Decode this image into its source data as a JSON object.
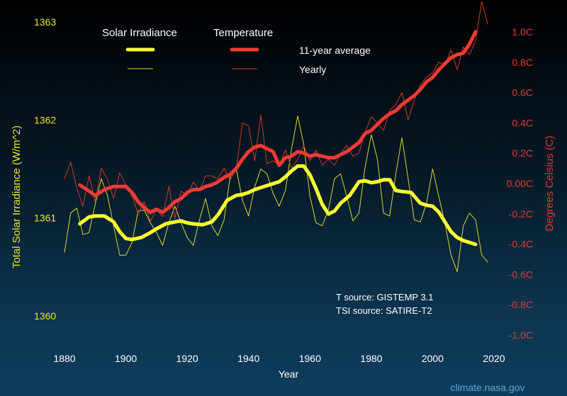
{
  "chart_data": {
    "type": "line",
    "xlabel": "Year",
    "x_ticks": [
      1880,
      1900,
      1920,
      1940,
      1960,
      1980,
      2000,
      2020
    ],
    "xlim": [
      1880,
      2020
    ],
    "left_axis": {
      "label": "Total Solar Irradiance (W/m^2)",
      "ticks": [
        1360,
        1361,
        1362,
        1363
      ],
      "tick_labels": [
        "1360",
        "1361",
        "1362",
        "1363"
      ],
      "ylim": [
        1360,
        1363
      ],
      "color": "#e8e62a"
    },
    "right_axis": {
      "label": "Degrees Celsius (C)",
      "ticks": [
        -1.0,
        -0.8,
        -0.6,
        -0.4,
        -0.2,
        0.0,
        0.2,
        0.4,
        0.6,
        0.8,
        1.0
      ],
      "tick_labels": [
        "-1.0C",
        "-0.8C",
        "-0.6C",
        "-0.4C",
        "-0.2C",
        "0.00C",
        "0.2C",
        "0.4C",
        "0.6C",
        "0.8C",
        "1.0C"
      ],
      "ylim": [
        -1.0,
        1.0
      ],
      "color": "#e23a33"
    },
    "legend": {
      "placement": "top-left",
      "headers": [
        "Solar Irradiance",
        "Temperature"
      ],
      "rows": [
        "11-year average",
        "Yearly"
      ]
    },
    "annotations": [
      "T source: GISTEMP 3.1",
      "TSI source: SATIRE-T2"
    ],
    "credit": "climate.nasa.gov",
    "series": [
      {
        "name": "Solar Irradiance 11-year average",
        "axis": "left",
        "color": "#ffff33",
        "width": 5,
        "x": [
          1885,
          1888,
          1890,
          1893,
          1896,
          1898,
          1900,
          1902,
          1905,
          1908,
          1910,
          1913,
          1916,
          1918,
          1920,
          1922,
          1925,
          1928,
          1930,
          1933,
          1936,
          1938,
          1940,
          1942,
          1945,
          1948,
          1950,
          1952,
          1954,
          1956,
          1958,
          1960,
          1962,
          1964,
          1966,
          1968,
          1970,
          1973,
          1976,
          1978,
          1980,
          1982,
          1984,
          1986,
          1988,
          1990,
          1993,
          1996,
          1998,
          2000,
          2002,
          2004,
          2006,
          2008,
          2010,
          2012,
          2014
        ],
        "y": [
          1360.94,
          1361.01,
          1361.02,
          1361.02,
          1360.96,
          1360.86,
          1360.79,
          1360.78,
          1360.8,
          1360.85,
          1360.89,
          1360.94,
          1360.96,
          1360.97,
          1360.95,
          1360.94,
          1360.93,
          1360.96,
          1361.03,
          1361.18,
          1361.23,
          1361.24,
          1361.26,
          1361.29,
          1361.32,
          1361.35,
          1361.37,
          1361.42,
          1361.48,
          1361.53,
          1361.53,
          1361.44,
          1361.3,
          1361.14,
          1361.04,
          1361.07,
          1361.15,
          1361.23,
          1361.37,
          1361.38,
          1361.36,
          1361.37,
          1361.39,
          1361.39,
          1361.28,
          1361.27,
          1361.26,
          1361.15,
          1361.13,
          1361.12,
          1361.06,
          1360.96,
          1360.86,
          1360.8,
          1360.77,
          1360.75,
          1360.73
        ]
      },
      {
        "name": "Solar Irradiance Yearly",
        "axis": "left",
        "color": "#d8d633",
        "width": 1,
        "x": [
          1880,
          1882,
          1884,
          1886,
          1888,
          1890,
          1892,
          1894,
          1896,
          1898,
          1900,
          1902,
          1904,
          1906,
          1908,
          1910,
          1912,
          1914,
          1916,
          1918,
          1920,
          1922,
          1924,
          1926,
          1928,
          1930,
          1932,
          1934,
          1936,
          1938,
          1940,
          1942,
          1944,
          1946,
          1948,
          1950,
          1952,
          1954,
          1956,
          1958,
          1960,
          1962,
          1964,
          1966,
          1968,
          1970,
          1972,
          1974,
          1976,
          1978,
          1980,
          1982,
          1984,
          1986,
          1988,
          1990,
          1992,
          1994,
          1996,
          1998,
          2000,
          2002,
          2004,
          2006,
          2008,
          2010,
          2012,
          2014,
          2016,
          2018
        ],
        "y": [
          1360.65,
          1361.05,
          1361.1,
          1360.83,
          1360.85,
          1361.14,
          1361.4,
          1361.23,
          1360.92,
          1360.62,
          1360.62,
          1360.75,
          1361.07,
          1361.08,
          1360.95,
          1360.85,
          1360.72,
          1360.95,
          1361.12,
          1360.95,
          1360.8,
          1360.72,
          1360.98,
          1361.2,
          1360.92,
          1360.82,
          1360.98,
          1361.42,
          1361.5,
          1361.18,
          1361.02,
          1361.32,
          1361.5,
          1361.45,
          1361.25,
          1361.12,
          1361.28,
          1361.7,
          1362.04,
          1361.75,
          1361.22,
          1360.95,
          1360.92,
          1361.08,
          1361.4,
          1361.45,
          1361.22,
          1360.97,
          1361.05,
          1361.52,
          1361.85,
          1361.6,
          1361.05,
          1361.02,
          1361.45,
          1361.82,
          1361.4,
          1360.98,
          1360.96,
          1361.15,
          1361.5,
          1361.22,
          1360.95,
          1360.62,
          1360.45,
          1360.92,
          1361.05,
          1360.98,
          1360.62,
          1360.55
        ]
      },
      {
        "name": "Temperature 11-year average",
        "axis": "right",
        "color": "#ee3b33",
        "width": 5,
        "x": [
          1885,
          1888,
          1890,
          1893,
          1896,
          1898,
          1900,
          1902,
          1904,
          1906,
          1908,
          1910,
          1912,
          1914,
          1916,
          1918,
          1920,
          1922,
          1924,
          1926,
          1928,
          1930,
          1932,
          1934,
          1936,
          1938,
          1940,
          1942,
          1944,
          1946,
          1948,
          1950,
          1952,
          1954,
          1956,
          1958,
          1960,
          1962,
          1964,
          1966,
          1968,
          1970,
          1972,
          1974,
          1976,
          1978,
          1980,
          1982,
          1984,
          1986,
          1988,
          1990,
          1992,
          1994,
          1996,
          1998,
          2000,
          2002,
          2004,
          2006,
          2008,
          2010,
          2012,
          2014
        ],
        "y": [
          -0.01,
          -0.05,
          -0.08,
          -0.04,
          -0.02,
          -0.02,
          -0.02,
          -0.06,
          -0.12,
          -0.16,
          -0.19,
          -0.17,
          -0.19,
          -0.16,
          -0.12,
          -0.1,
          -0.06,
          -0.04,
          -0.04,
          -0.02,
          -0.01,
          0.01,
          0.04,
          0.06,
          0.1,
          0.16,
          0.21,
          0.24,
          0.25,
          0.23,
          0.21,
          0.12,
          0.17,
          0.18,
          0.21,
          0.2,
          0.18,
          0.19,
          0.18,
          0.17,
          0.17,
          0.19,
          0.21,
          0.24,
          0.27,
          0.33,
          0.35,
          0.39,
          0.43,
          0.46,
          0.48,
          0.52,
          0.55,
          0.58,
          0.62,
          0.67,
          0.7,
          0.75,
          0.79,
          0.83,
          0.85,
          0.86,
          0.92,
          1.0
        ]
      },
      {
        "name": "Temperature Yearly",
        "axis": "right",
        "color": "#cc3a30",
        "width": 1,
        "x": [
          1880,
          1882,
          1884,
          1886,
          1888,
          1890,
          1892,
          1894,
          1896,
          1898,
          1900,
          1902,
          1904,
          1906,
          1908,
          1910,
          1912,
          1914,
          1916,
          1918,
          1920,
          1922,
          1924,
          1926,
          1928,
          1930,
          1932,
          1934,
          1936,
          1938,
          1940,
          1942,
          1944,
          1946,
          1948,
          1950,
          1952,
          1954,
          1956,
          1958,
          1960,
          1962,
          1964,
          1966,
          1968,
          1970,
          1972,
          1974,
          1976,
          1978,
          1980,
          1982,
          1984,
          1986,
          1988,
          1990,
          1992,
          1994,
          1996,
          1998,
          2000,
          2002,
          2004,
          2006,
          2008,
          2010,
          2012,
          2014,
          2016,
          2018
        ],
        "y": [
          0.03,
          0.14,
          -0.03,
          -0.15,
          0.05,
          -0.12,
          0.1,
          0.03,
          -0.1,
          0.07,
          -0.01,
          -0.08,
          -0.2,
          -0.12,
          -0.25,
          -0.17,
          -0.22,
          -0.02,
          -0.23,
          -0.05,
          -0.08,
          0.01,
          -0.05,
          0.05,
          0.05,
          0.03,
          0.1,
          0.02,
          0.1,
          0.4,
          0.38,
          0.15,
          0.45,
          0.13,
          0.15,
          0.12,
          0.22,
          0.1,
          0.16,
          0.25,
          0.15,
          0.22,
          0.12,
          0.16,
          0.12,
          0.2,
          0.25,
          0.18,
          0.2,
          0.34,
          0.44,
          0.4,
          0.35,
          0.48,
          0.52,
          0.6,
          0.42,
          0.55,
          0.65,
          0.7,
          0.73,
          0.8,
          0.78,
          0.88,
          0.75,
          0.9,
          0.85,
          0.94,
          1.2,
          1.05
        ]
      }
    ]
  }
}
